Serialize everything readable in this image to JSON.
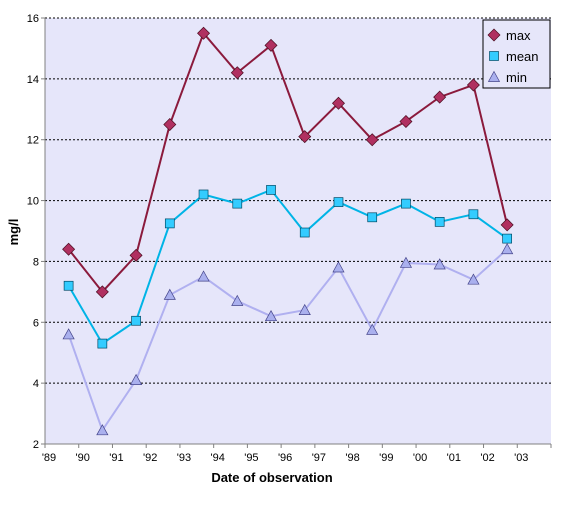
{
  "chart_data": {
    "type": "line",
    "title": "",
    "xlabel": "Date of observation",
    "ylabel": "mg/l",
    "ylim": [
      2,
      16
    ],
    "yticks": [
      2,
      4,
      6,
      8,
      10,
      12,
      14,
      16
    ],
    "xlim": [
      1989,
      2004
    ],
    "xticks": [
      1989,
      1990,
      1991,
      1992,
      1993,
      1994,
      1995,
      1996,
      1997,
      1998,
      1999,
      2000,
      2001,
      2002,
      2003,
      2004
    ],
    "xtick_labels": [
      "'89",
      "'90",
      "'91",
      "'92",
      "'93",
      "'94",
      "'95",
      "'96",
      "'97",
      "'98",
      "'99",
      "'00",
      "'01",
      "'02",
      "'03"
    ],
    "grid": "horizontal dotted",
    "legend_position": "top-right",
    "x": [
      1989.7,
      1990.7,
      1991.7,
      1992.7,
      1993.7,
      1994.7,
      1995.7,
      1996.7,
      1997.7,
      1998.7,
      1999.7,
      2000.7,
      2001.7,
      2002.7
    ],
    "series": [
      {
        "name": "max",
        "marker": "diamond",
        "line_color": "#8b1a3c",
        "marker_color": "#b03060",
        "values": [
          8.4,
          7.0,
          8.2,
          12.5,
          15.5,
          14.2,
          15.1,
          12.1,
          13.2,
          12.0,
          12.6,
          13.4,
          13.8,
          9.2
        ]
      },
      {
        "name": "mean",
        "marker": "square",
        "line_color": "#00b4e6",
        "marker_color": "#33ccff",
        "values": [
          7.2,
          5.3,
          6.05,
          9.25,
          10.2,
          9.9,
          10.35,
          8.95,
          9.95,
          9.45,
          9.9,
          9.3,
          9.55,
          8.75
        ]
      },
      {
        "name": "min",
        "marker": "triangle",
        "line_color": "#b0b0f0",
        "marker_color": "#aab0ee",
        "values": [
          5.6,
          2.45,
          4.1,
          6.9,
          7.5,
          6.7,
          6.2,
          6.4,
          7.8,
          5.75,
          7.95,
          7.9,
          7.4,
          8.4
        ]
      }
    ],
    "colors": {
      "plot_background": "#e6e6fa",
      "grid": "#000000"
    }
  }
}
